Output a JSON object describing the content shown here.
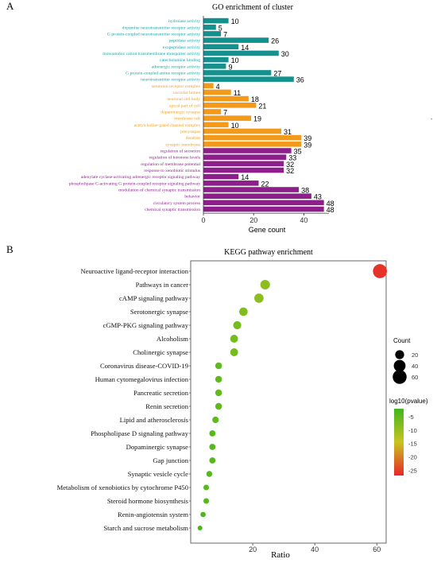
{
  "panels": {
    "a_label": "A",
    "b_label": "B"
  },
  "colors": {
    "teal": "#14918f",
    "orange": "#f39a1a",
    "purple": "#8c1f8a",
    "teal_text": "#17a5a2",
    "orange_text": "#f0a020",
    "purple_text": "#8c1f8a"
  },
  "chart_data": [
    {
      "type": "bar",
      "orientation": "horizontal",
      "title": "GO enrichment of cluster",
      "xlabel": "Gene count",
      "ylabel": "",
      "xlim": [
        0,
        50
      ],
      "xticks": [
        0,
        20,
        40
      ],
      "grid": false,
      "groups": [
        {
          "name": "",
          "color": "#14918f",
          "categories": [
            "hydrolase activity",
            "dopamine neurotransmitter receptor activity",
            "G protein-coupled neurotransmitter receptor activity",
            "peptidase activity",
            "exopeptidase activity",
            "monoatomic cation transmembrane transporter activity",
            "catecholamine binding",
            "adrenergic receptor activity",
            "G protein-coupled amine receptor activity",
            "neurotransmitter receptor activity"
          ],
          "values": [
            10,
            5,
            7,
            26,
            14,
            30,
            10,
            9,
            27,
            36
          ]
        },
        {
          "name": "",
          "color": "#f39a1a",
          "categories": [
            "serotonin receptor complex",
            "vacuolar lumen",
            "neuronal cell body",
            "apical part of cell",
            "dopaminergic synapse",
            "membrane raft",
            "acetylcholine-gated channel complex",
            "presynapse",
            "dendrite",
            "synaptic membrane"
          ],
          "values": [
            4,
            11,
            18,
            21,
            7,
            19,
            10,
            31,
            39,
            39
          ]
        },
        {
          "name": "",
          "color": "#8c1f8a",
          "categories": [
            "regulation of secretion",
            "regulation of hormone levels",
            "regulation of membrane potential",
            "response to xenobiotic stimulus",
            "adenylate cyclase-activating adrenergic receptor signaling pathway",
            "phospholipase C-activating G protein-coupled receptor signaling pathway",
            "modulation of chemical synaptic transmission",
            "behavior",
            "circulatory system process",
            "chemical synaptic transmission"
          ],
          "values": [
            35,
            33,
            32,
            32,
            14,
            22,
            38,
            43,
            48,
            48
          ]
        }
      ]
    },
    {
      "type": "scatter",
      "title": "KEGG pathway enrichment",
      "xlabel": "Ratio",
      "ylabel": "",
      "xlim": [
        0,
        63
      ],
      "xticks": [
        20,
        40,
        60
      ],
      "grid": false,
      "categories": [
        "Neuroactive ligand-receptor interaction",
        "Pathways in cancer",
        "cAMP signaling pathway",
        "Serotonergic synapse",
        "cGMP-PKG signaling pathway",
        "Alcoholism",
        "Cholinergic synapse",
        "Coronavirus disease-COVID-19",
        "Human cytomegalovirus infection",
        "Pancreatic secretion",
        "Renin secretion",
        "Lipid and atherosclerosis",
        "Phospholipase D signaling pathway",
        "Dopaminergic synapse",
        "Gap junction",
        "Synaptic vesicle cycle",
        "Metabolism of xenobiotics by cytochrome P450",
        "Steroid hormone biosynthesis",
        "Renin-angiotensin system",
        "Starch and sucrose metabolism"
      ],
      "x": [
        61,
        24,
        22,
        17,
        15,
        14,
        14,
        9,
        9,
        9,
        9,
        8,
        7,
        7,
        7,
        6,
        5,
        5,
        4,
        3
      ],
      "count": [
        61,
        24,
        22,
        17,
        15,
        14,
        14,
        9,
        9,
        9,
        9,
        8,
        7,
        7,
        7,
        6,
        5,
        5,
        4,
        3
      ],
      "log10_pvalue": [
        -26,
        -9,
        -9,
        -8,
        -7,
        -7,
        -7,
        -5,
        -5,
        -5,
        -5,
        -5,
        -4,
        -4,
        -4,
        -4,
        -4,
        -4,
        -3,
        -3
      ],
      "size_legend": {
        "title": "Count",
        "values": [
          20,
          40,
          60
        ]
      },
      "color_legend": {
        "title": "log10(pvalue)",
        "ticks": [
          -5,
          -10,
          -15,
          -20,
          -25
        ],
        "range": [
          -27,
          -2
        ],
        "low_color": "#e8262a",
        "high_color": "#3fb61f"
      }
    }
  ]
}
